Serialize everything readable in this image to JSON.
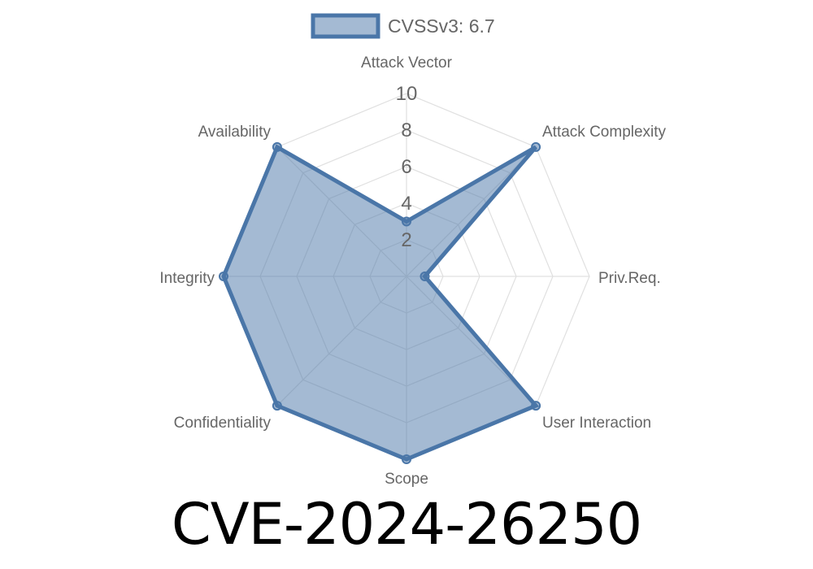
{
  "chart_data": {
    "type": "radar",
    "title": "CVE-2024-26250",
    "axes": [
      "Attack Vector",
      "Attack Complexity",
      "Priv.Req.",
      "User Interaction",
      "Scope",
      "Confidentiality",
      "Integrity",
      "Availability"
    ],
    "series": [
      {
        "name": "CVSSv3: 6.7",
        "values": [
          3,
          10,
          1,
          10,
          10,
          10,
          10,
          10
        ]
      }
    ],
    "r_range": [
      0,
      10
    ],
    "r_ticks": [
      "2",
      "4",
      "6",
      "8",
      "10"
    ],
    "grid": true,
    "legend_position": "top",
    "colors": {
      "stroke": "#4a76a8",
      "fill": "rgba(74,118,168,0.5)",
      "grid": "#e0e0e0",
      "label": "#666666"
    }
  }
}
